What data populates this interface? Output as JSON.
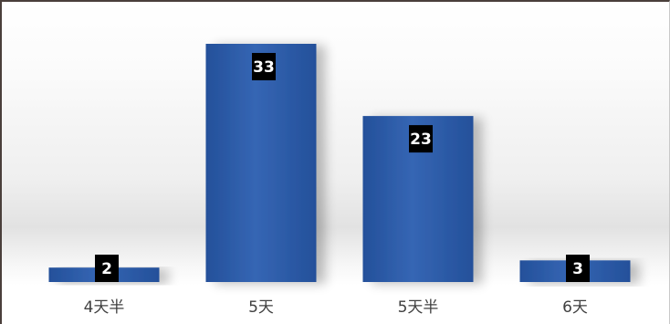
{
  "chart_data": {
    "type": "bar",
    "categories": [
      "4天半",
      "5天",
      "5天半",
      "6天"
    ],
    "values": [
      2,
      33,
      23,
      3
    ],
    "title": "",
    "xlabel": "",
    "ylabel": "",
    "ylim": [
      0,
      33
    ],
    "grid": false,
    "legend": "none",
    "data_labels": true,
    "colors": {
      "bar": "#2e5ca8",
      "bar_light": "#4f80c8",
      "label_bg": "#000000",
      "label_text": "#ffffff",
      "axis_text": "#404040"
    }
  }
}
